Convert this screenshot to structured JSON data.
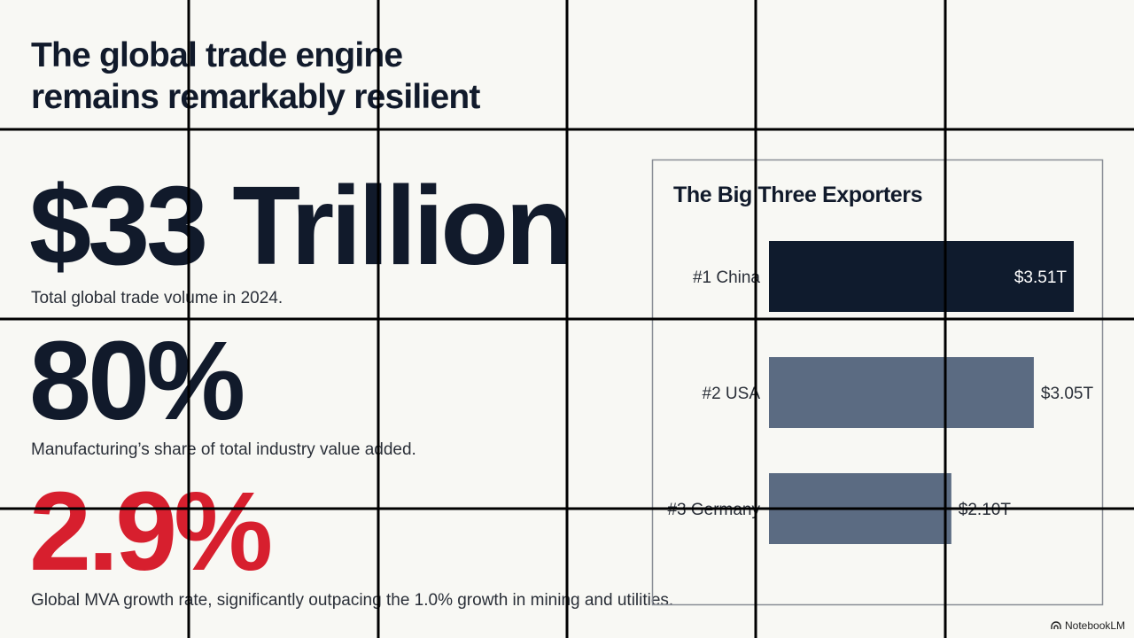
{
  "header": {
    "title_lines": [
      "The global trade engine",
      "remains remarkably resilient"
    ]
  },
  "stats": [
    {
      "value": "$33 Trillion",
      "caption": "Total global trade volume in 2024."
    },
    {
      "value": "80%",
      "caption": "Manufacturing’s share of total industry value added."
    },
    {
      "value": "2.9%",
      "caption": "Global MVA growth rate, significantly outpacing the 1.0% growth in mining and utilities."
    }
  ],
  "chart_data": {
    "type": "bar",
    "orientation": "horizontal",
    "title": "The Big Three Exporters",
    "categories": [
      "#1 China",
      "#2 USA",
      "#3 Germany"
    ],
    "values": [
      3.51,
      3.05,
      2.1
    ],
    "value_labels": [
      "$3.51T",
      "$3.05T",
      "$2.10T"
    ],
    "colors": [
      "#0f1b2d",
      "#5b6b82",
      "#5b6b82"
    ]
  },
  "footer": {
    "brand": "NotebookLM"
  }
}
